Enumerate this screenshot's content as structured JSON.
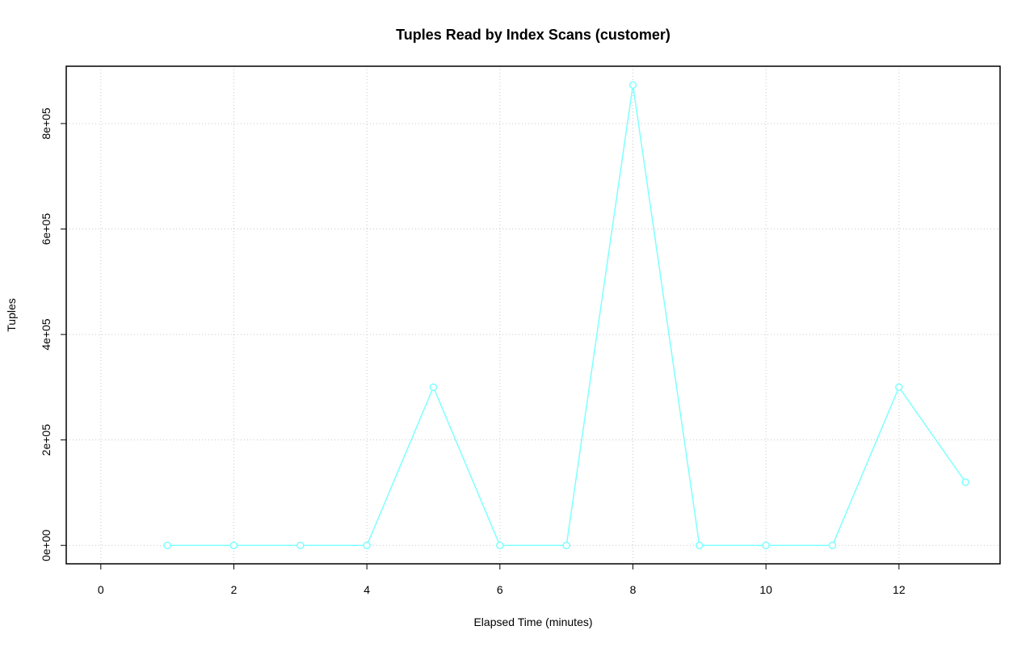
{
  "chart_data": {
    "type": "line",
    "title": "Tuples Read by Index Scans (customer)",
    "x_label": "Elapsed Time (minutes)",
    "y_label": "Tuples",
    "x": [
      1,
      2,
      3,
      4,
      5,
      6,
      7,
      8,
      9,
      10,
      11,
      12,
      13
    ],
    "values": [
      0,
      0,
      0,
      0,
      300000,
      0,
      0,
      873000,
      0,
      0,
      0,
      300000,
      120000
    ],
    "color": "#7fffff",
    "xlim": [
      -0.52,
      13.52
    ],
    "xticks": [
      0,
      2,
      4,
      6,
      8,
      10,
      12
    ],
    "ylim": [
      -34900,
      908700
    ],
    "yticks": [
      {
        "value": 0,
        "label": "0e+00"
      },
      {
        "value": 200000,
        "label": "2e+05"
      },
      {
        "value": 400000,
        "label": "4e+05"
      },
      {
        "value": 600000,
        "label": "6e+05"
      },
      {
        "value": 800000,
        "label": "8e+05"
      }
    ],
    "grid": true
  }
}
